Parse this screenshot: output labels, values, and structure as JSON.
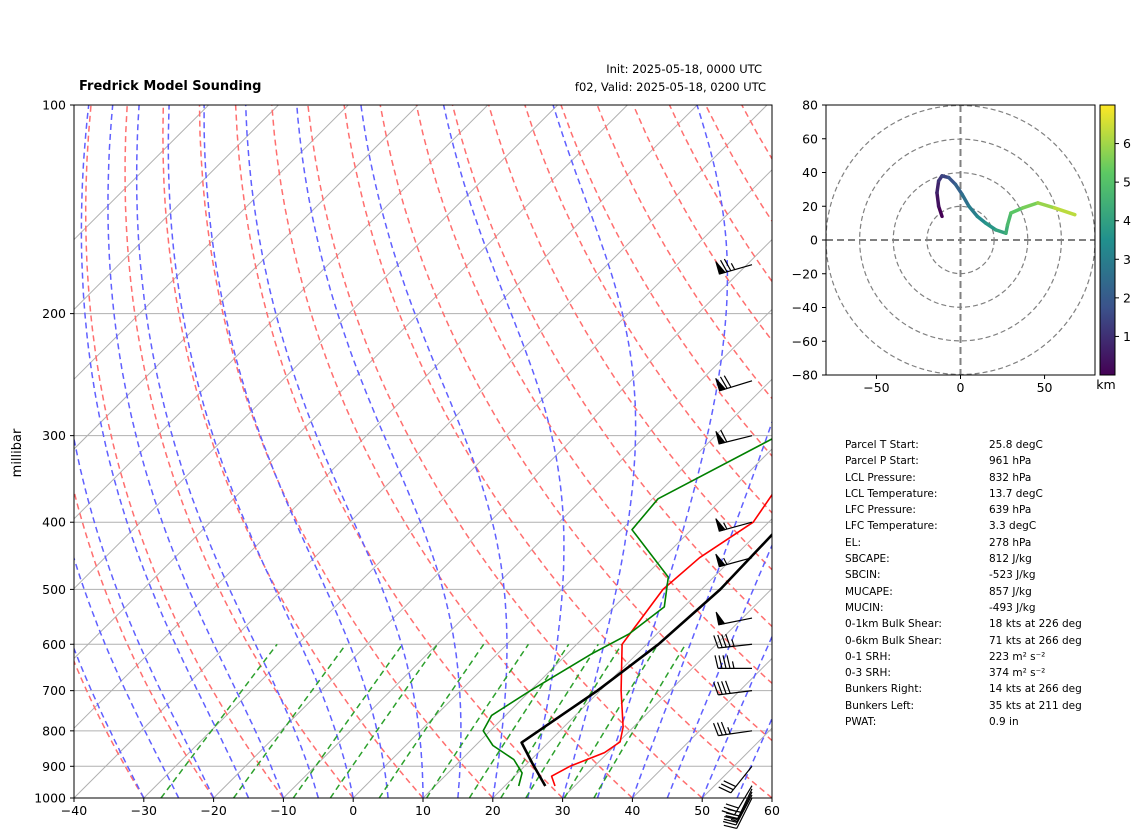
{
  "header": {
    "title": "Fredrick Model Sounding",
    "init": "Init: 2025-05-18, 0000 UTC",
    "valid": "f02, Valid: 2025-05-18, 0200 UTC"
  },
  "chart_data": [
    {
      "type": "line",
      "subtype": "skew-t log-p",
      "title": "Fredrick Model Sounding",
      "ylabel": "millibar",
      "xlabel": "",
      "xlim": [
        -40,
        60
      ],
      "ylim": [
        1000,
        100
      ],
      "y_scale": "log",
      "x_ticks": [
        -40,
        -30,
        -20,
        -10,
        0,
        10,
        20,
        30,
        40,
        50,
        60
      ],
      "x_tick_labels": [
        "−40",
        "−30",
        "−20",
        "−10",
        "0",
        "10",
        "20",
        "30",
        "40",
        "50",
        "60"
      ],
      "y_ticks": [
        1000,
        900,
        800,
        700,
        600,
        500,
        400,
        300,
        200,
        100
      ],
      "series": [
        {
          "key": "temperature",
          "color": "#ff0000",
          "points": [
            [
              27.2,
              961
            ],
            [
              25.3,
              930
            ],
            [
              26.5,
              900
            ],
            [
              29.5,
              860
            ],
            [
              30.2,
              830
            ],
            [
              28.5,
              790
            ],
            [
              23.0,
              700
            ],
            [
              16.5,
              600
            ],
            [
              14.5,
              500
            ],
            [
              15.2,
              450
            ],
            [
              17.8,
              400
            ],
            [
              16.0,
              350
            ],
            [
              14.9,
              300
            ],
            [
              14.5,
              250
            ],
            [
              15.4,
              190
            ],
            [
              20.0,
              150
            ],
            [
              30.5,
              120
            ],
            [
              35.0,
              100
            ]
          ]
        },
        {
          "key": "dewpoint",
          "color": "#008000",
          "points": [
            [
              22.0,
              961
            ],
            [
              20.6,
              920
            ],
            [
              17.5,
              880
            ],
            [
              12.5,
              840
            ],
            [
              9.0,
              800
            ],
            [
              8.0,
              760
            ],
            [
              10.0,
              700
            ],
            [
              13.5,
              620
            ],
            [
              16.0,
              580
            ],
            [
              17.2,
              530
            ],
            [
              13.5,
              480
            ],
            [
              1.5,
              410
            ],
            [
              0.8,
              370
            ],
            [
              9.0,
              300
            ],
            [
              9.0,
              250
            ],
            [
              7.9,
              200
            ],
            [
              6.3,
              180
            ],
            [
              7.0,
              150
            ],
            [
              12.0,
              100
            ]
          ]
        },
        {
          "key": "parcel",
          "color": "#000000",
          "points": [
            [
              25.8,
              961
            ],
            [
              20.6,
              890
            ],
            [
              16.2,
              832
            ],
            [
              19.6,
              700
            ],
            [
              21.7,
              600
            ],
            [
              22.7,
              500
            ],
            [
              22.2,
              400
            ],
            [
              19.5,
              300
            ],
            [
              16.5,
              250
            ],
            [
              13.0,
              200
            ],
            [
              10.5,
              150
            ],
            [
              9.0,
              120
            ],
            [
              9.5,
              100
            ]
          ]
        }
      ],
      "wind_barbs": [
        {
          "p": 1000,
          "u": 5,
          "v": 10
        },
        {
          "p": 990,
          "u": 8,
          "v": 15
        },
        {
          "p": 980,
          "u": 10,
          "v": 20
        },
        {
          "p": 970,
          "u": 12,
          "v": 25
        },
        {
          "p": 960,
          "u": 15,
          "v": 25
        },
        {
          "p": 900,
          "u": 20,
          "v": 25
        },
        {
          "p": 800,
          "u": 35,
          "v": 5
        },
        {
          "p": 700,
          "u": 40,
          "v": 5
        },
        {
          "p": 650,
          "u": 45,
          "v": 0
        },
        {
          "p": 600,
          "u": 45,
          "v": 5
        },
        {
          "p": 550,
          "u": 50,
          "v": 10
        },
        {
          "p": 450,
          "u": 55,
          "v": 15
        },
        {
          "p": 400,
          "u": 55,
          "v": 15
        },
        {
          "p": 300,
          "u": 60,
          "v": 15
        },
        {
          "p": 250,
          "u": 65,
          "v": 20
        },
        {
          "p": 170,
          "u": 70,
          "v": 20
        }
      ]
    },
    {
      "type": "line",
      "subtype": "hodograph",
      "xlim": [
        -80,
        80
      ],
      "ylim": [
        -80,
        80
      ],
      "x_ticks": [
        -50,
        0,
        50
      ],
      "x_tick_labels": [
        "−50",
        "0",
        "50"
      ],
      "y_ticks": [
        -80,
        -60,
        -40,
        -20,
        0,
        20,
        40,
        60,
        80
      ],
      "y_tick_labels": [
        "−80",
        "−60",
        "−40",
        "−20",
        "0",
        "20",
        "40",
        "60",
        "80"
      ],
      "rings": [
        20,
        40,
        60,
        80
      ],
      "points": [
        [
          -11,
          14
        ],
        [
          -13,
          20
        ],
        [
          -14,
          28
        ],
        [
          -13,
          35
        ],
        [
          -11,
          38
        ],
        [
          -7,
          37
        ],
        [
          -3,
          33
        ],
        [
          1,
          27
        ],
        [
          5,
          20
        ],
        [
          10,
          14
        ],
        [
          15,
          10
        ],
        [
          21,
          6
        ],
        [
          27,
          4
        ],
        [
          28,
          9
        ],
        [
          30,
          16
        ],
        [
          37,
          19
        ],
        [
          46,
          22
        ],
        [
          56,
          19
        ],
        [
          68,
          15
        ]
      ],
      "colorbar": {
        "label": "km",
        "ticks": [
          1,
          2,
          3,
          4,
          5,
          6
        ],
        "range": [
          0,
          7
        ],
        "colormap": [
          "#440154",
          "#3b528b",
          "#21908d",
          "#5dc963",
          "#fde725"
        ]
      }
    }
  ],
  "parameters": [
    {
      "name": "Parcel T Start:",
      "value": "25.8 degC"
    },
    {
      "name": "Parcel P Start:",
      "value": "961 hPa"
    },
    {
      "name": "LCL Pressure:",
      "value": "832 hPa"
    },
    {
      "name": "LCL Temperature:",
      "value": "13.7 degC"
    },
    {
      "name": "LFC Pressure:",
      "value": "639 hPa"
    },
    {
      "name": "LFC Temperature:",
      "value": "3.3 degC"
    },
    {
      "name": "EL:",
      "value": "278 hPa"
    },
    {
      "name": "SBCAPE:",
      "value": "812 J/kg"
    },
    {
      "name": "SBCIN:",
      "value": "-523 J/kg"
    },
    {
      "name": "MUCAPE:",
      "value": "857 J/kg"
    },
    {
      "name": "MUCIN:",
      "value": "-493 J/kg"
    },
    {
      "name": "0-1km Bulk Shear:",
      "value": "18 kts at 226 deg"
    },
    {
      "name": "0-6km Bulk Shear:",
      "value": "71 kts at 266 deg"
    },
    {
      "name": "0-1 SRH:",
      "value": "223 m² s⁻²"
    },
    {
      "name": "0-3 SRH:",
      "value": "374 m² s⁻²"
    },
    {
      "name": "Bunkers Right:",
      "value": "14 kts at 266 deg"
    },
    {
      "name": "Bunkers Left:",
      "value": "35 kts at 211 deg"
    },
    {
      "name": "PWAT:",
      "value": "0.9 in"
    }
  ],
  "colors": {
    "temperature": "#ff0000",
    "dewpoint": "#008000",
    "parcel": "#000000",
    "dry_adiabat": "#ff6f6f",
    "moist_adiabat": "#6060ff",
    "mixing_ratio": "#2ca02c",
    "grid": "#b0b0b0"
  }
}
